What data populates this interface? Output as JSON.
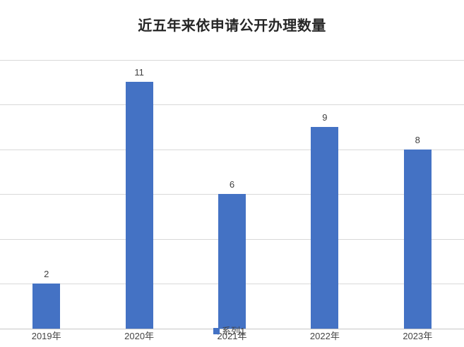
{
  "title": {
    "text": "近五年来依申请公开办理数量"
  },
  "legend": {
    "series_label": "系列1"
  },
  "chart_data": {
    "type": "bar",
    "title": "近五年来依申请公开办理数量",
    "categories": [
      "2019年",
      "2020年",
      "2021年",
      "2022年",
      "2023年"
    ],
    "series": [
      {
        "name": "系列1",
        "values": [
          2,
          11,
          6,
          9,
          8
        ]
      }
    ],
    "data_labels": [
      "2",
      "11",
      "6",
      "9",
      "8"
    ],
    "xlabel": "",
    "ylabel": "",
    "ylim": [
      0,
      12
    ],
    "gridline_step": 2,
    "grid": true,
    "legend_position": "bottom-center",
    "colors": {
      "bar": "#4472c4",
      "gridline": "#d9d9d9",
      "axis_line": "#c6c6c6",
      "data_label": "#404040",
      "category_label": "#444444",
      "title": "#262626"
    }
  }
}
